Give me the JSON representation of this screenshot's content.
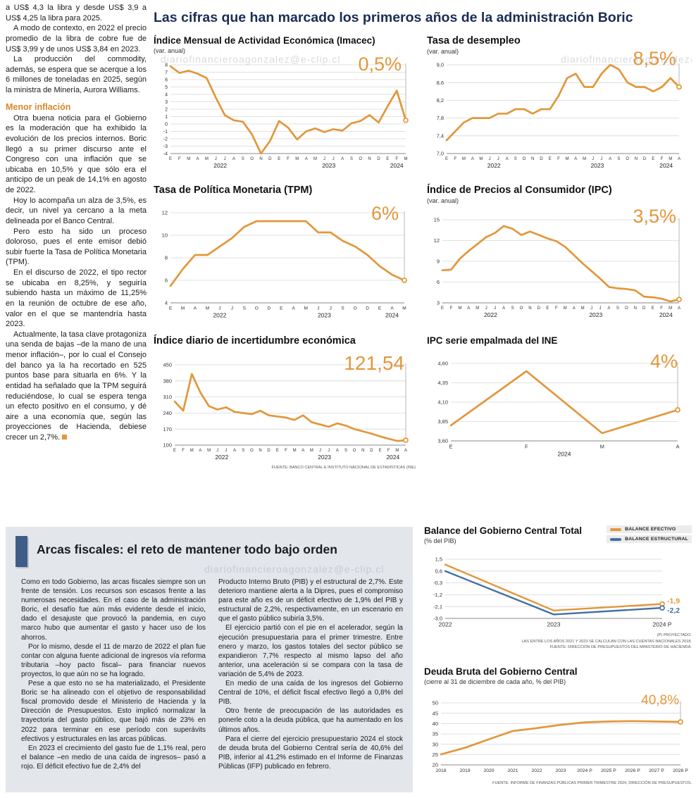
{
  "page": {
    "main_title": "Las cifras que han marcado los primeros años de la administración Boric",
    "watermark": "diariofinancieroagonzalez@e-clip.cl"
  },
  "colors": {
    "orange": "#E2973B",
    "blue": "#44719F",
    "navy": "#1B2D55",
    "heading_orange": "#D8882A",
    "box_bg": "#E3E6EB",
    "bar_blue": "#3E5C88"
  },
  "left_article": {
    "paragraphs_top": [
      "a US$ 4,3 la libra y desde US$ 3,9 a US$ 4,25 la libra para 2025.",
      "A modo de contexto, en 2022 el precio promedio de la libra de cobre fue de US$ 3,99 y de unos US$ 3,84 en 2023.",
      "La producción del commodity, además, se espera que se acerque a los 6 millones de toneladas en 2025, según la ministra de Minería, Aurora Williams."
    ],
    "heading": "Menor inflación",
    "paragraphs_bottom": [
      "Otra buena noticia para el Gobierno es la moderación que ha exhibido la evolución de los precios internos. Boric llegó a su primer discurso ante el Congreso con una inflación que se ubicaba en 10,5% y que sólo era el anticipo de un peak de 14,1% en agosto de 2022.",
      "Hoy lo acompaña un alza de 3,5%, es decir, un nivel ya cercano a la meta delineada por el Banco Central.",
      "Pero esto ha sido un proceso doloroso, pues el ente emisor debió subir fuerte la Tasa de Política Monetaria (TPM).",
      "En el discurso de 2022, el tipo rector se ubicaba en 8,25%, y seguiría subiendo hasta un máximo de 11,25% en la reunión de octubre de ese año, valor en el que se mantendría hasta 2023.",
      "Actualmente, la tasa clave protagoniza una senda de bajas –de la mano de una menor inflación–, por lo cual el Consejo del banco ya la ha recortado en 525 puntos base para situarla en 6%. Y la entidad ha señalado que la TPM seguirá reduciéndose, lo cual se espera tenga un efecto positivo en el consumo, y dé aire a una economía que, según las proyecciones de Hacienda, debiese crecer un 2,7%."
    ]
  },
  "fiscal_section": {
    "title": "Arcas fiscales: el reto de mantener todo bajo orden",
    "col1": [
      "Como en todo Gobierno, las arcas fiscales siempre son un frente de tensión. Los recursos son escasos frente a las numerosas necesidades. En el caso de la administración Boric, el desafío fue aún más evidente desde el inicio, dado el desajuste que provocó la pandemia, en cuyo marco hubo que aumentar el gasto y hacer uso de los ahorros.",
      "Por lo mismo, desde el 11 de marzo de 2022 el plan fue contar con alguna fuente adicional de ingresos vía reforma tributaria –hoy pacto fiscal– para financiar nuevos proyectos, lo que aún no se ha logrado.",
      "Pese a que esto no se ha materializado, el Presidente Boric se ha alineado con el objetivo de responsabilidad fiscal promovido desde el Ministerio de Hacienda y la Dirección de Presupuestos. Esto implicó normalizar la trayectoria del gasto público, que bajó más de 23% en 2022 para terminar en ese período con superávits efectivos y estructurales en las arcas públicas.",
      "En 2023 el crecimiento del gasto fue de 1,1% real, pero el balance –en medio de una caída de ingresos– pasó a rojo. El déficit efectivo fue de 2,4% del"
    ],
    "col2": [
      "Producto Interno Bruto (PIB) y el estructural de 2,7%. Este deterioro mantiene alerta a la Dipres, pues el compromiso para este año es de un déficit efectivo de 1,9% del PIB y estructural de 2,2%, respectivamente, en un escenario en que el gasto público subiría 3,5%.",
      "El ejercicio partió con el pie en el acelerador, según la ejecución presupuestaria para el primer trimestre. Entre enero y marzo, los gastos totales del sector público se expandieron 7,7% respecto al mismo lapso del año anterior, una aceleración si se compara con la tasa de variación de 5,4% de 2023.",
      "En medio de una caída de los ingresos del Gobierno Central de 10%, el déficit fiscal efectivo llegó a 0,8% del PIB.",
      "Otro frente de preocupación de las autoridades es ponerle coto a la deuda pública, que ha aumentado en los últimos años.",
      "Para el cierre del ejercicio presupuestario 2024 el stock de deuda bruta del Gobierno Central sería de 40,6% del PIB, inferior al 41,2% estimado en el Informe de Finanzas Públicas (IFP) publicado en febrero."
    ]
  },
  "chart_data": [
    {
      "type": "line",
      "title": "Índice Mensual de Actividad Económica (Imacec)",
      "subtitle": "(var. anual)",
      "big_label": "0,5%",
      "color": "#E2973B",
      "x_labels": [
        "E",
        "F",
        "M",
        "A",
        "M",
        "J",
        "J",
        "A",
        "S",
        "O",
        "N",
        "D",
        "E",
        "F",
        "M",
        "A",
        "M",
        "J",
        "J",
        "A",
        "S",
        "O",
        "N",
        "D",
        "E",
        "F",
        "M"
      ],
      "year_labels": [
        {
          "t": "2022",
          "i": 5.5
        },
        {
          "t": "2023",
          "i": 17.5
        },
        {
          "t": "2024",
          "i": 25
        }
      ],
      "y_range": [
        -4,
        8
      ],
      "y_ticks": [
        {
          "v": 8,
          "t": "8"
        },
        {
          "v": 7,
          "t": "7"
        },
        {
          "v": 6,
          "t": "6"
        },
        {
          "v": 5,
          "t": "5"
        },
        {
          "v": 4,
          "t": "4"
        },
        {
          "v": 3,
          "t": "3"
        },
        {
          "v": 2,
          "t": "2"
        },
        {
          "v": 1,
          "t": "1"
        },
        {
          "v": 0,
          "t": "0"
        },
        {
          "v": -1,
          "t": "-1"
        },
        {
          "v": -2,
          "t": "-2"
        },
        {
          "v": -3,
          "t": "-3"
        },
        {
          "v": -4,
          "t": "-4"
        }
      ],
      "values": [
        7.8,
        6.9,
        7.2,
        6.8,
        6.2,
        3.6,
        1.2,
        0.5,
        0.3,
        -1.4,
        -4.0,
        -2.3,
        0.4,
        -0.5,
        -2.1,
        -1.0,
        -0.6,
        -1.1,
        -0.7,
        -0.9,
        0.1,
        0.4,
        1.2,
        0.2,
        2.4,
        4.5,
        0.5
      ]
    },
    {
      "type": "line",
      "title": "Tasa de desempleo",
      "subtitle": "(var. anual)",
      "big_label": "8,5%",
      "color": "#E2973B",
      "x_labels": [
        "E",
        "F",
        "M",
        "A",
        "M",
        "J",
        "J",
        "A",
        "S",
        "O",
        "N",
        "D",
        "E",
        "F",
        "M",
        "A",
        "M",
        "J",
        "J",
        "A",
        "S",
        "O",
        "N",
        "D",
        "E",
        "F",
        "M",
        "A"
      ],
      "year_labels": [
        {
          "t": "2022",
          "i": 5.5
        },
        {
          "t": "2023",
          "i": 17.5
        },
        {
          "t": "2024",
          "i": 25.5
        }
      ],
      "y_range": [
        7.0,
        9.0
      ],
      "y_ticks": [
        {
          "v": 9.0,
          "t": "9,0"
        },
        {
          "v": 8.6,
          "t": "8,6"
        },
        {
          "v": 8.2,
          "t": "8,2"
        },
        {
          "v": 7.8,
          "t": "7,8"
        },
        {
          "v": 7.4,
          "t": "7,4"
        },
        {
          "v": 7.0,
          "t": "7,0"
        }
      ],
      "values": [
        7.3,
        7.5,
        7.7,
        7.8,
        7.8,
        7.8,
        7.9,
        7.9,
        8.0,
        8.0,
        7.9,
        8.0,
        8.0,
        8.3,
        8.7,
        8.8,
        8.5,
        8.5,
        8.8,
        9.0,
        8.9,
        8.6,
        8.5,
        8.5,
        8.4,
        8.5,
        8.7,
        8.5
      ]
    },
    {
      "type": "line",
      "title": "Tasa de Política Monetaria (TPM)",
      "big_label": "6%",
      "color": "#E2973B",
      "x_labels": [
        "E",
        "M",
        "A",
        "M",
        "J",
        "J",
        "S",
        "O",
        "D",
        "E",
        "A",
        "M",
        "J",
        "J",
        "S",
        "O",
        "D",
        "E",
        "A",
        "M"
      ],
      "year_labels": [
        {
          "t": "2022",
          "i": 4
        },
        {
          "t": "2023",
          "i": 12.5
        },
        {
          "t": "2024",
          "i": 18
        }
      ],
      "y_range": [
        4,
        12
      ],
      "y_ticks": [
        {
          "v": 12,
          "t": "12"
        },
        {
          "v": 10,
          "t": "10"
        },
        {
          "v": 8,
          "t": "8"
        },
        {
          "v": 6,
          "t": "6"
        },
        {
          "v": 4,
          "t": "4"
        }
      ],
      "values": [
        5.5,
        7.0,
        8.25,
        8.25,
        9.0,
        9.75,
        10.75,
        11.25,
        11.25,
        11.25,
        11.25,
        11.25,
        10.25,
        10.25,
        9.5,
        9.0,
        8.25,
        7.25,
        6.5,
        6.0
      ]
    },
    {
      "type": "line",
      "title": "Índice de Precios al Consumidor (IPC)",
      "subtitle": "(var. anual)",
      "big_label": "3,5%",
      "color": "#E2973B",
      "x_labels": [
        "E",
        "F",
        "M",
        "A",
        "M",
        "J",
        "J",
        "A",
        "S",
        "O",
        "N",
        "D",
        "E",
        "F",
        "M",
        "A",
        "M",
        "J",
        "J",
        "A",
        "S",
        "O",
        "N",
        "D",
        "E",
        "F",
        "M",
        "A"
      ],
      "year_labels": [
        {
          "t": "2022",
          "i": 5.5
        },
        {
          "t": "2023",
          "i": 17.5
        },
        {
          "t": "2024",
          "i": 25.5
        }
      ],
      "y_range": [
        3,
        15
      ],
      "y_ticks": [
        {
          "v": 15,
          "t": "15"
        },
        {
          "v": 12,
          "t": "12"
        },
        {
          "v": 9,
          "t": "9"
        },
        {
          "v": 6,
          "t": "6"
        },
        {
          "v": 3,
          "t": "3"
        }
      ],
      "values": [
        7.7,
        7.8,
        9.4,
        10.5,
        11.5,
        12.5,
        13.1,
        14.1,
        13.7,
        12.8,
        13.3,
        12.8,
        12.3,
        11.9,
        11.1,
        9.9,
        8.7,
        7.6,
        6.5,
        5.3,
        5.1,
        5.0,
        4.8,
        3.9,
        3.8,
        3.6,
        3.2,
        3.5
      ]
    },
    {
      "type": "line",
      "title": "Índice diario de incertidumbre económica",
      "big_label": "121,54",
      "color": "#E2973B",
      "footnote": "FUENTE: BANCO CENTRAL E INSTITUTO NACIONAL DE ESTADÍSTICAS (INE)",
      "x_labels": [
        "E",
        "F",
        "M",
        "A",
        "M",
        "J",
        "J",
        "A",
        "S",
        "O",
        "N",
        "D",
        "E",
        "F",
        "M",
        "A",
        "M",
        "J",
        "J",
        "A",
        "S",
        "O",
        "N",
        "D",
        "E",
        "F",
        "M",
        "A"
      ],
      "year_labels": [
        {
          "t": "2022",
          "i": 5.5
        },
        {
          "t": "2023",
          "i": 17.5
        },
        {
          "t": "2024",
          "i": 25.5
        }
      ],
      "y_range": [
        100,
        450
      ],
      "y_ticks": [
        {
          "v": 450,
          "t": "450"
        },
        {
          "v": 380,
          "t": "380"
        },
        {
          "v": 310,
          "t": "310"
        },
        {
          "v": 240,
          "t": "240"
        },
        {
          "v": 170,
          "t": "170"
        },
        {
          "v": 100,
          "t": "100"
        }
      ],
      "values": [
        290,
        250,
        410,
        330,
        270,
        255,
        265,
        245,
        240,
        235,
        250,
        230,
        225,
        220,
        210,
        230,
        200,
        190,
        180,
        195,
        185,
        170,
        160,
        150,
        138,
        128,
        118,
        121.5
      ]
    },
    {
      "type": "line",
      "title": "IPC serie empalmada del INE",
      "big_label": "4%",
      "color": "#E2973B",
      "x_labels": [
        "E",
        "F",
        "M",
        "A"
      ],
      "year_labels": [
        {
          "t": "2024",
          "i": 1.5
        }
      ],
      "y_range": [
        3.6,
        4.6
      ],
      "y_ticks": [
        {
          "v": 4.6,
          "t": "4,60"
        },
        {
          "v": 4.35,
          "t": "4,35"
        },
        {
          "v": 4.1,
          "t": "4,10"
        },
        {
          "v": 3.85,
          "t": "3,85"
        },
        {
          "v": 3.6,
          "t": "3,60"
        }
      ],
      "values": [
        3.8,
        4.5,
        3.7,
        4.0
      ]
    },
    {
      "type": "line",
      "title": "Balance del Gobierno Central Total",
      "subtitle": "(% del PIB)",
      "x_labels": [
        "2022",
        "2023",
        "2024 P"
      ],
      "y_range": [
        -3.0,
        1.5
      ],
      "y_ticks": [
        {
          "v": 1.5,
          "t": "1,5"
        },
        {
          "v": 0.6,
          "t": "0,6"
        },
        {
          "v": -0.3,
          "t": "-0,3"
        },
        {
          "v": -1.2,
          "t": "-1,2"
        },
        {
          "v": -2.1,
          "t": "-2,1"
        },
        {
          "v": -3.0,
          "t": "-3,0"
        }
      ],
      "series": [
        {
          "name": "BALANCE EFECTIVO",
          "color": "#E2973B",
          "values": [
            1.1,
            -2.4,
            -1.9
          ],
          "end_label": "-1,9"
        },
        {
          "name": "BALANCE ESTRUCTURAL",
          "color": "#44719F",
          "values": [
            0.6,
            -2.7,
            -2.2
          ],
          "end_label": "-2,2"
        }
      ],
      "footnotes": [
        "(P) PROYECTADO.",
        "LAS ENTRE LOS AÑOS 2021 Y 2023 SE CALCULAN CON LAS CUENTAS NACIONALES 2018.",
        "FUENTE: DIRECCIÓN DE PRESUPUESTOS DEL MINISTERIO DE HACIENDA."
      ]
    },
    {
      "type": "line",
      "title": "Deuda Bruta del Gobierno Central",
      "subtitle": "(cierre al 31 de diciembre de cada año, % del PIB)",
      "big_label": "40,8%",
      "color": "#E2973B",
      "footnote": "FUENTE: INFORME DE FINANZAS PÚBLICAS PRIMER TRIMESTRE 2024, DIRECCIÓN DE PRESUPUESTOS.",
      "x_labels": [
        "2018",
        "2019",
        "2020",
        "2021",
        "2022",
        "2023",
        "2024 P",
        "2025 P",
        "2026 P",
        "2027 P",
        "2028 P"
      ],
      "y_range": [
        20,
        50
      ],
      "y_ticks": [
        {
          "v": 50,
          "t": "50"
        },
        {
          "v": 45,
          "t": "45"
        },
        {
          "v": 40,
          "t": "40"
        },
        {
          "v": 35,
          "t": "35"
        },
        {
          "v": 30,
          "t": "30"
        },
        {
          "v": 25,
          "t": "25"
        },
        {
          "v": 20,
          "t": "20"
        }
      ],
      "values": [
        25.1,
        28.3,
        32.4,
        36.4,
        37.8,
        39.4,
        40.6,
        41.0,
        41.2,
        41.0,
        40.8
      ]
    }
  ]
}
